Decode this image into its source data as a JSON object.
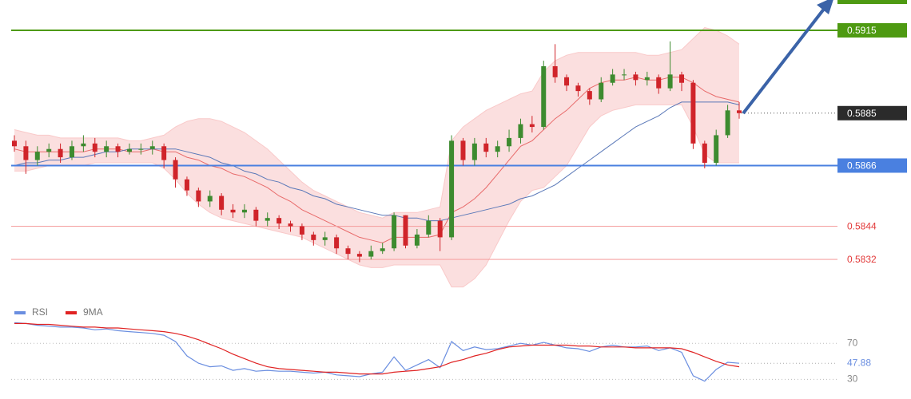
{
  "chart_data": [
    {
      "type": "candlestick",
      "open": [
        0.5875,
        0.5873,
        0.5868,
        0.5871,
        0.5872,
        0.5869,
        0.5873,
        0.5874,
        0.5871,
        0.5873,
        0.5871,
        0.5872,
        0.5872,
        0.5873,
        0.5868,
        0.5861,
        0.5857,
        0.5853,
        0.5855,
        0.585,
        0.5849,
        0.585,
        0.5846,
        0.5847,
        0.5845,
        0.5844,
        0.5841,
        0.5839,
        0.584,
        0.5836,
        0.5834,
        0.5833,
        0.5835,
        0.5836,
        0.5848,
        0.5837,
        0.5841,
        0.5846,
        0.584,
        0.5875,
        0.5868,
        0.5874,
        0.5871,
        0.5873,
        0.5876,
        0.5881,
        0.588,
        0.5902,
        0.5898,
        0.5895,
        0.5893,
        0.589,
        0.5896,
        0.5899,
        0.5899,
        0.5897,
        0.5898,
        0.5894,
        0.5899,
        0.5896,
        0.5874,
        0.5867,
        0.5877,
        0.5886
      ],
      "high": [
        0.5877,
        0.5875,
        0.5873,
        0.5874,
        0.5874,
        0.5875,
        0.5877,
        0.5876,
        0.5875,
        0.5874,
        0.5874,
        0.5874,
        0.5875,
        0.5874,
        0.5869,
        0.5862,
        0.5858,
        0.5857,
        0.5856,
        0.5852,
        0.5852,
        0.5851,
        0.5849,
        0.5848,
        0.5846,
        0.5845,
        0.5842,
        0.5842,
        0.5841,
        0.5837,
        0.5835,
        0.5837,
        0.5838,
        0.5849,
        0.5848,
        0.5843,
        0.5848,
        0.5847,
        0.5877,
        0.5876,
        0.5876,
        0.5876,
        0.5875,
        0.5879,
        0.5883,
        0.5884,
        0.5904,
        0.591,
        0.5899,
        0.5896,
        0.5894,
        0.5898,
        0.5901,
        0.5901,
        0.59,
        0.59,
        0.5899,
        0.5911,
        0.59,
        0.5897,
        0.5875,
        0.5879,
        0.5888,
        0.5889
      ],
      "low": [
        0.5871,
        0.5863,
        0.5866,
        0.5869,
        0.5867,
        0.5868,
        0.5871,
        0.5869,
        0.5869,
        0.5869,
        0.587,
        0.587,
        0.587,
        0.5865,
        0.5858,
        0.5855,
        0.5851,
        0.5851,
        0.5848,
        0.5847,
        0.5847,
        0.5844,
        0.5844,
        0.5843,
        0.5842,
        0.5839,
        0.5837,
        0.5837,
        0.5834,
        0.5832,
        0.5831,
        0.5832,
        0.5834,
        0.5835,
        0.5836,
        0.5836,
        0.584,
        0.5835,
        0.5839,
        0.5866,
        0.5866,
        0.5869,
        0.5869,
        0.5871,
        0.5874,
        0.5878,
        0.5879,
        0.5896,
        0.5893,
        0.5891,
        0.5888,
        0.5889,
        0.5895,
        0.5897,
        0.5895,
        0.5895,
        0.5892,
        0.5893,
        0.5893,
        0.5872,
        0.5865,
        0.5866,
        0.5876,
        0.5883
      ],
      "close": [
        0.5873,
        0.5868,
        0.5871,
        0.5872,
        0.5869,
        0.5873,
        0.5874,
        0.5871,
        0.5873,
        0.5871,
        0.5872,
        0.5872,
        0.5873,
        0.5868,
        0.5861,
        0.5857,
        0.5853,
        0.5855,
        0.585,
        0.5849,
        0.585,
        0.5846,
        0.5847,
        0.5845,
        0.5844,
        0.5841,
        0.5839,
        0.584,
        0.5836,
        0.5834,
        0.5833,
        0.5835,
        0.5836,
        0.5848,
        0.5837,
        0.5841,
        0.5846,
        0.584,
        0.5875,
        0.5868,
        0.5874,
        0.5871,
        0.5873,
        0.5876,
        0.5881,
        0.588,
        0.5902,
        0.5898,
        0.5895,
        0.5893,
        0.589,
        0.5896,
        0.5899,
        0.5899,
        0.5897,
        0.5898,
        0.5894,
        0.5899,
        0.5896,
        0.5874,
        0.5867,
        0.5877,
        0.5886,
        0.5885
      ],
      "up_color": "#3d8b2f",
      "down_color": "#d0242a",
      "bb_upper": [
        0.5879,
        0.5878,
        0.5877,
        0.5877,
        0.5876,
        0.5876,
        0.5876,
        0.5876,
        0.5876,
        0.5876,
        0.5875,
        0.5875,
        0.5876,
        0.5877,
        0.588,
        0.5882,
        0.5883,
        0.5883,
        0.5882,
        0.588,
        0.5878,
        0.5875,
        0.5872,
        0.5868,
        0.5864,
        0.586,
        0.5857,
        0.5855,
        0.5853,
        0.5851,
        0.5849,
        0.5848,
        0.5847,
        0.5849,
        0.5849,
        0.5849,
        0.585,
        0.5851,
        0.5875,
        0.588,
        0.5883,
        0.5886,
        0.5888,
        0.589,
        0.5892,
        0.5893,
        0.59,
        0.5904,
        0.5906,
        0.5907,
        0.5907,
        0.5907,
        0.5907,
        0.5907,
        0.5907,
        0.5906,
        0.5906,
        0.5907,
        0.5908,
        0.5912,
        0.5916,
        0.5915,
        0.5913,
        0.591
      ],
      "bb_lower": [
        0.5864,
        0.5864,
        0.5865,
        0.5866,
        0.5866,
        0.5866,
        0.5866,
        0.5867,
        0.5867,
        0.5867,
        0.5867,
        0.5867,
        0.5867,
        0.5865,
        0.5861,
        0.5856,
        0.5852,
        0.5849,
        0.5847,
        0.5846,
        0.5845,
        0.5844,
        0.5843,
        0.5842,
        0.5841,
        0.584,
        0.5838,
        0.5836,
        0.5834,
        0.5832,
        0.583,
        0.5829,
        0.5829,
        0.583,
        0.583,
        0.583,
        0.583,
        0.583,
        0.5822,
        0.5822,
        0.5825,
        0.583,
        0.5838,
        0.5846,
        0.5853,
        0.5857,
        0.5858,
        0.5862,
        0.5866,
        0.5873,
        0.588,
        0.5884,
        0.5886,
        0.5887,
        0.5888,
        0.5888,
        0.5888,
        0.5888,
        0.5888,
        0.588,
        0.587,
        0.5867,
        0.5867,
        0.5867
      ],
      "bb_mid": [
        0.5872,
        0.5871,
        0.5871,
        0.5871,
        0.5871,
        0.5871,
        0.5871,
        0.5872,
        0.5872,
        0.5872,
        0.5871,
        0.5871,
        0.5872,
        0.5871,
        0.5871,
        0.5869,
        0.5868,
        0.5866,
        0.5865,
        0.5863,
        0.5862,
        0.586,
        0.5858,
        0.5855,
        0.5853,
        0.585,
        0.5848,
        0.5846,
        0.5844,
        0.5842,
        0.584,
        0.5839,
        0.5838,
        0.584,
        0.584,
        0.584,
        0.584,
        0.5841,
        0.5849,
        0.5851,
        0.5854,
        0.5858,
        0.5863,
        0.5868,
        0.5873,
        0.5875,
        0.5879,
        0.5883,
        0.5886,
        0.589,
        0.5894,
        0.5896,
        0.5897,
        0.5897,
        0.5898,
        0.5897,
        0.5897,
        0.5898,
        0.5898,
        0.5896,
        0.5893,
        0.5891,
        0.589,
        0.5889
      ],
      "ma": [
        0.5866,
        0.5867,
        0.5867,
        0.5868,
        0.5868,
        0.5869,
        0.5869,
        0.587,
        0.5871,
        0.5871,
        0.5872,
        0.5872,
        0.5872,
        0.5872,
        0.5872,
        0.5871,
        0.587,
        0.5869,
        0.5867,
        0.5866,
        0.5864,
        0.5863,
        0.5861,
        0.586,
        0.5858,
        0.5857,
        0.5855,
        0.5854,
        0.5852,
        0.5851,
        0.585,
        0.5849,
        0.5848,
        0.5848,
        0.5847,
        0.5847,
        0.5846,
        0.5846,
        0.5847,
        0.5848,
        0.5849,
        0.585,
        0.5851,
        0.5852,
        0.5854,
        0.5855,
        0.5857,
        0.5859,
        0.5862,
        0.5865,
        0.5868,
        0.5871,
        0.5874,
        0.5877,
        0.588,
        0.5882,
        0.5884,
        0.5887,
        0.5889,
        0.5889,
        0.5889,
        0.5889,
        0.5889,
        0.5888
      ],
      "band_color": "#f9c9c9",
      "mid_color": "#e86a6a",
      "ma_color": "#5a78b8",
      "levels": [
        {
          "value": 0.5915,
          "color": "#4e9a12",
          "label_style": "box"
        },
        {
          "value": 0.5866,
          "color": "#4a80e0",
          "label_style": "box"
        },
        {
          "value": 0.5844,
          "color": "#f5a3a3",
          "label_style": "text"
        },
        {
          "value": 0.5832,
          "color": "#f5a3a3",
          "label_style": "text"
        }
      ],
      "last_price": {
        "value": 0.5885,
        "color": "#2b2b2b"
      },
      "ylim": [
        0.5819,
        0.5926
      ]
    },
    {
      "type": "line",
      "series": [
        {
          "name": "RSI",
          "color": "#6a8ee0",
          "values": [
            93,
            92,
            90,
            89,
            88,
            88,
            87,
            85,
            86,
            84,
            83,
            82,
            81,
            79,
            72,
            56,
            48,
            44,
            45,
            40,
            42,
            39,
            40,
            39,
            39,
            38,
            37,
            38,
            35,
            34,
            33,
            36,
            38,
            55,
            40,
            46,
            52,
            43,
            72,
            62,
            66,
            63,
            64,
            67,
            70,
            68,
            71,
            68,
            65,
            64,
            61,
            66,
            68,
            66,
            66,
            67,
            62,
            65,
            60,
            34,
            28,
            41,
            49,
            47.88
          ]
        },
        {
          "name": "9MA",
          "color": "#e02222",
          "values": [
            92,
            92,
            91,
            91,
            90,
            89,
            88,
            88,
            87,
            87,
            86,
            85,
            84,
            83,
            81,
            78,
            74,
            69,
            64,
            58,
            53,
            48,
            44,
            42,
            41,
            40,
            39,
            38,
            38,
            37,
            36,
            36,
            36,
            38,
            39,
            40,
            42,
            44,
            49,
            52,
            56,
            59,
            63,
            66,
            67,
            68,
            68,
            68,
            68,
            67,
            67,
            66,
            66,
            66,
            65,
            65,
            65,
            65,
            64,
            60,
            55,
            50,
            46,
            44
          ]
        }
      ],
      "ylim": [
        10,
        95
      ],
      "yticks": [
        30,
        70
      ]
    }
  ]
}
